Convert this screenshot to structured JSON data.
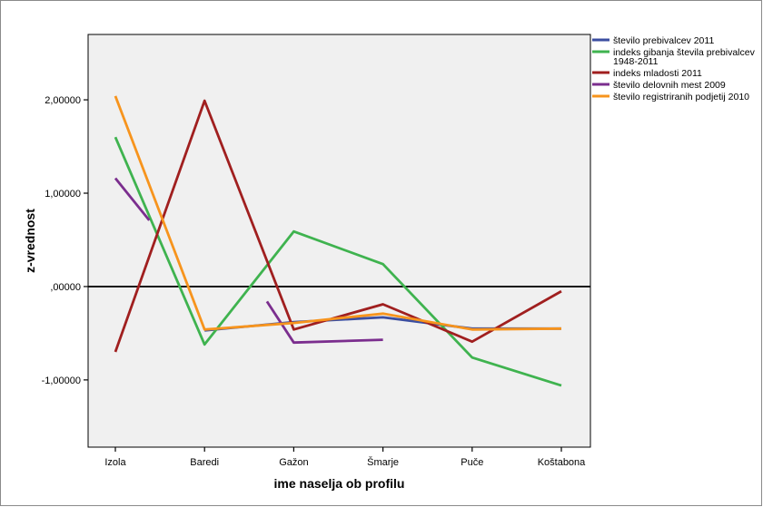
{
  "chart_data": {
    "type": "line",
    "xlabel": "ime naselja ob profilu",
    "ylabel": "z-vrednost",
    "categories": [
      "Izola",
      "Baredi",
      "Gažon",
      "Šmarje",
      "Puče",
      "Koštabona"
    ],
    "ylim": [
      -1.72,
      2.7
    ],
    "yticks": [
      2,
      1,
      0,
      -1
    ],
    "ytick_labels": [
      "2,00000",
      "1,00000",
      ",00000",
      "-1,00000"
    ],
    "reference_line": 0,
    "grid": false,
    "legend_position": "top-right",
    "plot_background": "#f0f0f0",
    "series": [
      {
        "name": "število prebivalcev 2011",
        "color": "#3b4ea0",
        "points": [
          [
            1,
            -0.47
          ],
          [
            2,
            -0.38
          ],
          [
            3,
            -0.33
          ],
          [
            4,
            -0.45
          ],
          [
            5,
            -0.45
          ]
        ]
      },
      {
        "name": "indeks gibanja števila prebivalcev 1948-2011",
        "color": "#3fb34f",
        "points": [
          [
            0,
            1.6
          ],
          [
            1,
            -0.62
          ],
          [
            2,
            0.59
          ],
          [
            3,
            0.24
          ],
          [
            4,
            -0.76
          ],
          [
            5,
            -1.06
          ]
        ]
      },
      {
        "name": "indeks mladosti 2011",
        "color": "#a01f1f",
        "points": [
          [
            0,
            -0.7
          ],
          [
            1,
            1.99
          ],
          [
            2,
            -0.46
          ],
          [
            3,
            -0.19
          ],
          [
            4,
            -0.59
          ],
          [
            5,
            -0.05
          ]
        ]
      },
      {
        "name": "število delovnih mest 2009",
        "color": "#7b2e8e",
        "segments": [
          [
            [
              0,
              1.16
            ],
            [
              0.38,
              0.71
            ]
          ],
          [
            [
              1.7,
              -0.16
            ],
            [
              2,
              -0.6
            ],
            [
              3,
              -0.57
            ]
          ]
        ]
      },
      {
        "name": "število registriranih podjetij 2010",
        "color": "#f7941d",
        "points": [
          [
            0,
            2.04
          ],
          [
            1,
            -0.46
          ],
          [
            2,
            -0.39
          ],
          [
            3,
            -0.29
          ],
          [
            4,
            -0.46
          ],
          [
            5,
            -0.45
          ]
        ]
      }
    ]
  }
}
